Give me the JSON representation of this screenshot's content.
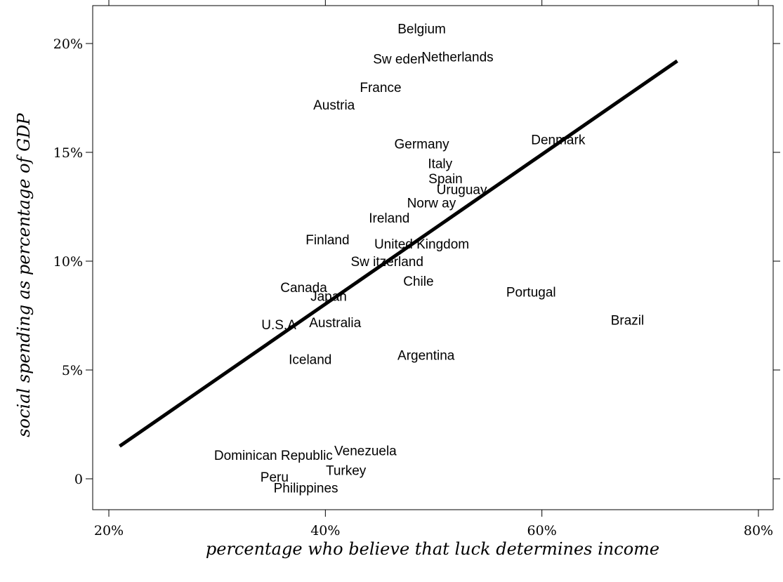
{
  "chart_data": {
    "type": "scatter",
    "title": "",
    "xlabel": "percentage who believe that luck determines income",
    "ylabel": "social spending as percentage of GDP",
    "xlim": [
      20,
      80
    ],
    "ylim": [
      -1.5,
      21.5
    ],
    "x_ticks": [
      {
        "value": 20,
        "label": "20%"
      },
      {
        "value": 40,
        "label": "40%"
      },
      {
        "value": 60,
        "label": "60%"
      },
      {
        "value": 80,
        "label": "80%"
      }
    ],
    "y_ticks": [
      {
        "value": 0,
        "label": "0"
      },
      {
        "value": 5,
        "label": "5%"
      },
      {
        "value": 10,
        "label": "10%"
      },
      {
        "value": 15,
        "label": "15%"
      },
      {
        "value": 20,
        "label": "20%"
      }
    ],
    "grid": false,
    "legend": "none",
    "points": [
      {
        "label": "Belgium",
        "x": 48.9,
        "y": 20.7
      },
      {
        "label": "Sw eden",
        "x": 46.8,
        "y": 19.3
      },
      {
        "label": "Netherlands",
        "x": 52.2,
        "y": 19.4
      },
      {
        "label": "France",
        "x": 45.1,
        "y": 18.0
      },
      {
        "label": "Austria",
        "x": 40.8,
        "y": 17.2
      },
      {
        "label": "Germany",
        "x": 48.9,
        "y": 15.4
      },
      {
        "label": "Denmark",
        "x": 61.5,
        "y": 15.6
      },
      {
        "label": "Italy",
        "x": 50.6,
        "y": 14.5
      },
      {
        "label": "Spain",
        "x": 51.1,
        "y": 13.8
      },
      {
        "label": "Uruguay",
        "x": 52.6,
        "y": 13.3
      },
      {
        "label": "Norw ay",
        "x": 49.8,
        "y": 12.7
      },
      {
        "label": "Ireland",
        "x": 45.9,
        "y": 12.0
      },
      {
        "label": "Finland",
        "x": 40.2,
        "y": 11.0
      },
      {
        "label": "United Kingdom",
        "x": 48.9,
        "y": 10.8
      },
      {
        "label": "Sw itzerland",
        "x": 45.7,
        "y": 10.0
      },
      {
        "label": "Chile",
        "x": 48.6,
        "y": 9.1
      },
      {
        "label": "Canada",
        "x": 38.0,
        "y": 8.8
      },
      {
        "label": "Japan",
        "x": 40.3,
        "y": 8.4
      },
      {
        "label": "Portugal",
        "x": 59.0,
        "y": 8.6
      },
      {
        "label": "Brazil",
        "x": 67.9,
        "y": 7.3
      },
      {
        "label": "U.S.A",
        "x": 35.7,
        "y": 7.1
      },
      {
        "label": "Australia",
        "x": 40.9,
        "y": 7.2
      },
      {
        "label": "Argentina",
        "x": 49.3,
        "y": 5.7
      },
      {
        "label": "Iceland",
        "x": 38.6,
        "y": 5.5
      },
      {
        "label": "Dominican Republic",
        "x": 35.2,
        "y": 1.1
      },
      {
        "label": "Venezuela",
        "x": 43.7,
        "y": 1.3
      },
      {
        "label": "Turkey",
        "x": 41.9,
        "y": 0.4
      },
      {
        "label": "Peru",
        "x": 35.3,
        "y": 0.1
      },
      {
        "label": "Philippines",
        "x": 38.2,
        "y": -0.4
      }
    ],
    "fit_line": {
      "x": [
        21.0,
        72.5
      ],
      "y": [
        1.5,
        19.2
      ]
    }
  }
}
